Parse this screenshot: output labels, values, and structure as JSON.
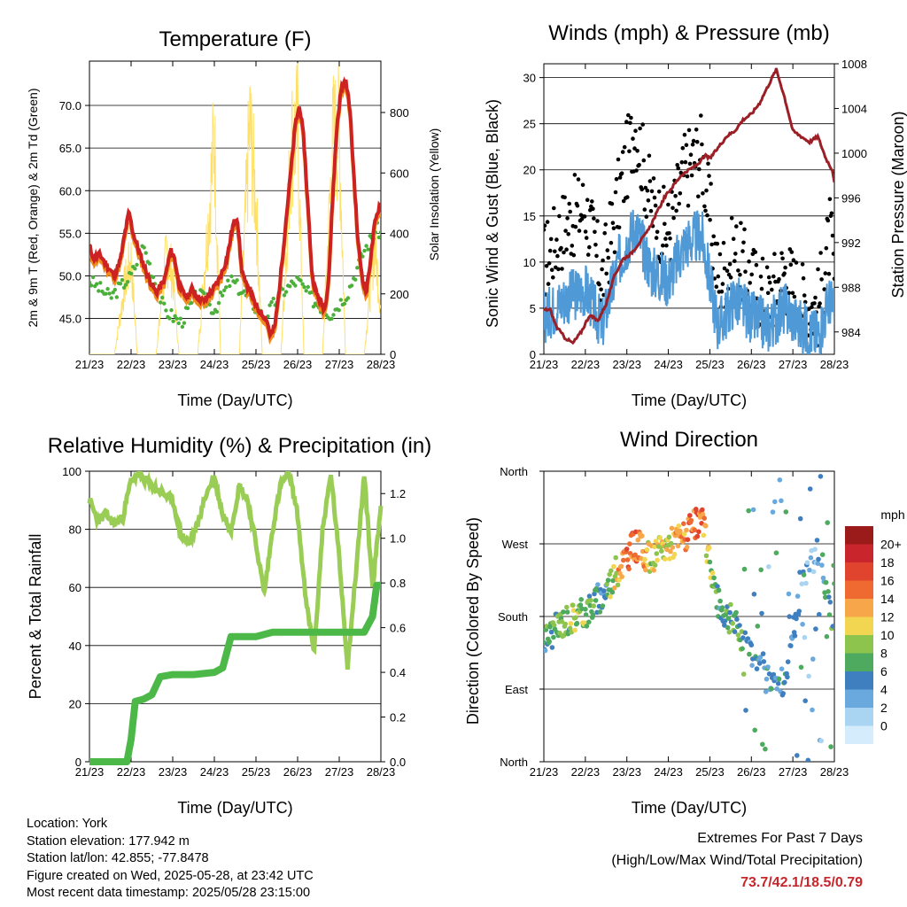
{
  "x_ticks": [
    "21/23",
    "22/23",
    "23/23",
    "24/23",
    "25/23",
    "26/23",
    "27/23",
    "28/23"
  ],
  "xlabel": "Time (Day/UTC)",
  "colors": {
    "temp_red": "#cc2222",
    "temp_orange": "#f08c1e",
    "dew_green": "#4caf3c",
    "solar_yellow": "#ffe066",
    "wind_blue": "#4f9ad6",
    "gust_black": "#000000",
    "pressure_maroon": "#9a1f26",
    "rh_green": "#9acd55",
    "precip_green": "#4cb848",
    "extremes": "#c8262c"
  },
  "chart_data": [
    {
      "type": "line",
      "title": "Temperature (F)",
      "ylabel": "2m & 9m T (Red, Orange) & 2m Td (Green)",
      "y2label": "Solar Insolation (Yellow)",
      "ylim": [
        40.8,
        75.2
      ],
      "yticks": [
        "45.0",
        "50.0",
        "55.0",
        "60.0",
        "65.0",
        "70.0"
      ],
      "y2lim": [
        0,
        970
      ],
      "y2ticks": [
        "0",
        "200",
        "400",
        "600",
        "800"
      ],
      "grid": true,
      "series": [
        {
          "name": "2m T",
          "color": "#cc2222",
          "x": [
            0,
            0.1,
            0.25,
            0.45,
            0.6,
            0.75,
            0.85,
            0.95,
            1.05,
            1.15,
            1.25,
            1.4,
            1.6,
            1.8,
            1.95,
            2.05,
            2.15,
            2.25,
            2.35,
            2.45,
            2.6,
            2.75,
            2.9,
            3.05,
            3.15,
            3.3,
            3.45,
            3.55,
            3.6,
            3.65,
            3.75,
            3.85,
            3.95,
            4.05,
            4.15,
            4.25,
            4.35,
            4.45,
            4.55,
            4.65,
            4.75,
            4.85,
            4.95,
            5.05,
            5.15,
            5.25,
            5.35,
            5.45,
            5.55,
            5.65,
            5.75,
            5.85,
            5.95,
            6.05,
            6.15,
            6.25,
            6.35,
            6.45,
            6.55,
            6.65,
            6.75,
            6.85,
            6.95,
            7.0
          ],
          "y": [
            53.5,
            52,
            52.5,
            51,
            50,
            52,
            55,
            57.5,
            55,
            53.5,
            52,
            50,
            48,
            49.5,
            53,
            52,
            49,
            48,
            47.5,
            48.5,
            47.5,
            47,
            48,
            49,
            50,
            52,
            56,
            57,
            54,
            51,
            49,
            48.5,
            47,
            46,
            45.5,
            45,
            43,
            44,
            48,
            53,
            58,
            63,
            68,
            70,
            66,
            58,
            50,
            48,
            47,
            46,
            50,
            60,
            68,
            72,
            73,
            70,
            62,
            54,
            50,
            48,
            52,
            56,
            58,
            58.5
          ]
        },
        {
          "name": "9m T",
          "color": "#f08c1e",
          "x": [
            0,
            7
          ],
          "y": [
            53,
            58
          ]
        },
        {
          "name": "2m Td",
          "color": "#4caf3c",
          "x": [
            0,
            0.5,
            1,
            1.3,
            1.8,
            2.2,
            2.6,
            3,
            3.4,
            3.8,
            4.2,
            4.6,
            5,
            5.4,
            5.8,
            6.2,
            6.6,
            6.9,
            7
          ],
          "y": [
            49.5,
            47.5,
            50,
            53.5,
            46,
            44.5,
            48,
            46,
            49.5,
            47.5,
            45,
            48,
            49.5,
            47,
            45.5,
            48,
            53,
            55.5,
            55
          ]
        },
        {
          "name": "Solar Insolation",
          "color": "#ffe066",
          "x": [
            0,
            0.6,
            0.85,
            1.0,
            1.15,
            1.6,
            1.85,
            2.0,
            2.15,
            2.6,
            2.85,
            3.0,
            3.15,
            3.6,
            3.85,
            4.0,
            4.15,
            4.6,
            4.85,
            5.0,
            5.15,
            5.6,
            5.85,
            6.0,
            6.15,
            6.6,
            6.85,
            7
          ],
          "y": [
            0,
            0,
            280,
            380,
            0,
            0,
            400,
            320,
            0,
            0,
            520,
            880,
            0,
            0,
            920,
            600,
            0,
            0,
            850,
            900,
            0,
            0,
            870,
            880,
            0,
            0,
            450,
            180
          ]
        }
      ]
    },
    {
      "type": "scatter",
      "title": "Winds (mph) & Pressure (mb)",
      "ylabel": "Sonic Wind & Gust (Blue, Black)",
      "y2label": "Station Pressure (Maroon)",
      "ylim": [
        0,
        31.5
      ],
      "yticks": [
        "0",
        "5",
        "10",
        "15",
        "20",
        "25",
        "30"
      ],
      "y2lim": [
        982,
        1008
      ],
      "y2ticks": [
        "984",
        "988",
        "992",
        "996",
        "1000",
        "1004",
        "1008"
      ],
      "grid": true,
      "series": [
        {
          "name": "Sonic Wind",
          "color": "#4f9ad6",
          "x": [
            0,
            0.5,
            1,
            1.4,
            1.8,
            2.2,
            2.6,
            3,
            3.4,
            3.8,
            4.2,
            4.6,
            5,
            5.4,
            5.8,
            6.2,
            6.6,
            6.9,
            7
          ],
          "y": [
            4,
            6,
            7,
            3,
            10,
            14,
            9,
            8,
            12,
            13,
            3,
            6,
            4,
            3,
            5,
            3,
            2,
            6,
            4
          ]
        },
        {
          "name": "Gust",
          "color": "#000000",
          "x": [
            0,
            0.5,
            1,
            1.4,
            1.8,
            2.2,
            2.6,
            3,
            3.4,
            3.8,
            4.2,
            4.6,
            5,
            5.4,
            5.8,
            6.2,
            6.6,
            6.9,
            7
          ],
          "y": [
            10,
            14,
            16,
            8,
            17,
            25,
            16,
            13,
            20,
            22,
            8,
            11,
            8,
            6,
            9,
            6,
            5,
            13,
            8
          ]
        },
        {
          "name": "Station Pressure",
          "color": "#9a1f26",
          "x": [
            0,
            0.15,
            0.3,
            0.5,
            0.7,
            0.9,
            1.1,
            1.3,
            1.5,
            1.7,
            1.9,
            2.1,
            2.3,
            2.5,
            2.7,
            2.9,
            3.1,
            3.3,
            3.5,
            3.7,
            3.9,
            4.0,
            4.2,
            4.4,
            4.6,
            4.8,
            5.0,
            5.2,
            5.4,
            5.6,
            5.8,
            6.0,
            6.2,
            6.4,
            6.6,
            6.8,
            6.95,
            7.0
          ],
          "y": [
            986,
            986,
            984.5,
            983.5,
            983,
            984,
            985.5,
            985,
            986.5,
            989,
            990.5,
            991,
            992,
            993,
            994.5,
            996,
            997,
            998,
            998.5,
            999,
            999.8,
            999.5,
            1000.5,
            1001.5,
            1002,
            1003,
            1003.5,
            1004.5,
            1006,
            1007.5,
            1005,
            1002,
            1001.5,
            1001,
            1001.5,
            999.5,
            998.5,
            997.5
          ]
        }
      ]
    },
    {
      "type": "line",
      "title": "Relative Humidity (%) & Precipitation (in)",
      "ylabel": "Percent & Total Rainfall",
      "ylim": [
        0,
        100
      ],
      "yticks": [
        "0",
        "20",
        "40",
        "60",
        "80",
        "100"
      ],
      "y2lim": [
        0,
        1.3
      ],
      "y2ticks": [
        "0.0",
        "0.2",
        "0.4",
        "0.6",
        "0.8",
        "1.0",
        "1.2"
      ],
      "grid": true,
      "series": [
        {
          "name": "Relative Humidity",
          "color": "#9acd55",
          "x": [
            0,
            0.2,
            0.4,
            0.6,
            0.8,
            1.0,
            1.2,
            1.4,
            1.6,
            1.8,
            2.0,
            2.2,
            2.4,
            2.6,
            2.8,
            3.0,
            3.2,
            3.4,
            3.6,
            3.8,
            4.0,
            4.2,
            4.4,
            4.6,
            4.8,
            5.0,
            5.2,
            5.4,
            5.6,
            5.8,
            6.0,
            6.2,
            6.4,
            6.6,
            6.8,
            7.0
          ],
          "y": [
            90,
            83,
            85,
            82,
            84,
            97,
            99,
            96,
            94,
            92,
            90,
            78,
            75,
            82,
            92,
            98,
            85,
            80,
            95,
            90,
            75,
            58,
            80,
            96,
            99,
            85,
            55,
            38,
            80,
            99,
            70,
            33,
            65,
            99,
            60,
            88
          ]
        },
        {
          "name": "Total Rainfall",
          "color": "#4cb848",
          "x": [
            0,
            0.9,
            1.0,
            1.1,
            1.3,
            1.5,
            1.7,
            2.0,
            2.5,
            3.0,
            3.2,
            3.4,
            3.7,
            4.0,
            4.4,
            4.8,
            5.2,
            5.6,
            6.0,
            6.4,
            6.6,
            6.8,
            6.9,
            7.0
          ],
          "y": [
            0,
            0,
            0.1,
            0.27,
            0.28,
            0.3,
            0.38,
            0.39,
            0.39,
            0.4,
            0.42,
            0.56,
            0.56,
            0.56,
            0.58,
            0.58,
            0.58,
            0.58,
            0.58,
            0.58,
            0.58,
            0.65,
            0.79,
            0.79
          ]
        }
      ]
    },
    {
      "type": "scatter",
      "title": "Wind Direction",
      "ylabel": "Direction (Colored By Speed)",
      "yticks": [
        "North",
        "East",
        "South",
        "West",
        "North"
      ],
      "ylim": [
        0,
        360
      ],
      "grid": true,
      "legend": {
        "title": "mph",
        "labels": [
          "20+",
          "18",
          "16",
          "14",
          "12",
          "10",
          "8",
          "6",
          "4",
          "2",
          "0"
        ],
        "colors": [
          "#9b1a1a",
          "#c8262c",
          "#e0432e",
          "#ee6a30",
          "#f7a64a",
          "#f2d550",
          "#8cc44e",
          "#4daa5e",
          "#3f7fc0",
          "#6aa9dd",
          "#a9d4f2",
          "#d4ecfb"
        ]
      },
      "series": [
        {
          "name": "Direction",
          "x": [
            0,
            0.5,
            1,
            1.4,
            1.8,
            2.2,
            2.6,
            3,
            3.4,
            3.8,
            4.2,
            4.6,
            5,
            5.4,
            5.8,
            6.2,
            6.6,
            6.9,
            7
          ],
          "y": [
            150,
            175,
            185,
            205,
            240,
            270,
            250,
            270,
            280,
            300,
            195,
            170,
            140,
            110,
            100,
            220,
            260,
            185,
            150
          ],
          "speed": [
            5,
            7,
            8,
            3,
            11,
            15,
            9,
            10,
            13,
            14,
            4,
            6,
            4,
            3,
            4,
            3,
            2,
            6,
            4
          ]
        }
      ]
    }
  ],
  "footer": {
    "location": "Location: York",
    "elevation": "Station elevation: 177.942 m",
    "latlon": "Station lat/lon: 42.855; -77.8478",
    "created": "Figure created on Wed, 2025-05-28, at 23:42 UTC",
    "recent": "Most recent data timestamp: 2025/05/28 23:15:00",
    "extremes_title": "Extremes For Past 7 Days",
    "extremes_desc": "(High/Low/Max Wind/Total Precipitation)",
    "extremes_values": "73.7/42.1/18.5/0.79"
  }
}
